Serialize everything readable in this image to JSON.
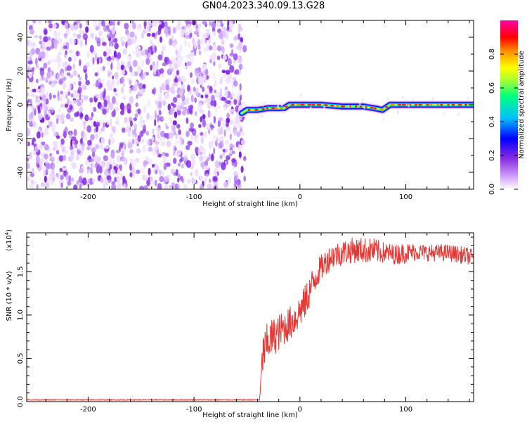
{
  "title": "GN04.2023.340.09.13.G28",
  "colors": {
    "snr_line": "#e53935",
    "noise": "#8a2be2",
    "colormap": [
      "#ffffff",
      "#d9b3ff",
      "#8a2be2",
      "#0000ff",
      "#00bfff",
      "#00ff7f",
      "#adff2f",
      "#ffff00",
      "#ff8c00",
      "#ff0000",
      "#ff00ff"
    ]
  },
  "chart_data": [
    {
      "type": "heatmap",
      "xlabel": "Height of straight line (km)",
      "ylabel": "Frequency (Hz)",
      "xlim": [
        -258,
        164
      ],
      "ylim": [
        -50,
        50
      ],
      "xticks": [
        "-200",
        "-100",
        "0",
        "100"
      ],
      "xtick_values": [
        -200,
        -100,
        0,
        100
      ],
      "yticks": [
        "40",
        "20",
        "0",
        "-20",
        "-40"
      ],
      "ytick_values": [
        40,
        20,
        0,
        -20,
        -40
      ],
      "noise_region": {
        "x_from": -258,
        "x_to": -52,
        "description_level": "low-amplitude speckle"
      },
      "ridge": [
        {
          "x": -55,
          "f": -5
        },
        {
          "x": -50,
          "f": -3
        },
        {
          "x": -40,
          "f": -3
        },
        {
          "x": -30,
          "f": -2
        },
        {
          "x": -20,
          "f": -2
        },
        {
          "x": -15,
          "f": -2
        },
        {
          "x": -10,
          "f": 0
        },
        {
          "x": -5,
          "f": 0
        },
        {
          "x": 0,
          "f": 0
        },
        {
          "x": 20,
          "f": 0
        },
        {
          "x": 40,
          "f": -1
        },
        {
          "x": 60,
          "f": -1
        },
        {
          "x": 70,
          "f": -2
        },
        {
          "x": 78,
          "f": -3
        },
        {
          "x": 85,
          "f": 0
        },
        {
          "x": 100,
          "f": 0
        },
        {
          "x": 130,
          "f": 0
        },
        {
          "x": 164,
          "f": 0
        }
      ],
      "colorbar": {
        "label": "Normalized spectral amplitude",
        "ticks": [
          "0.0",
          "0.2",
          "0.4",
          "0.6",
          "0.8"
        ],
        "tick_values": [
          0.0,
          0.2,
          0.4,
          0.6,
          0.8
        ],
        "range": [
          0,
          1
        ]
      }
    },
    {
      "type": "line",
      "xlabel": "Height of straight line (km)",
      "ylabel": "SNR (10 * v/v)",
      "scale_note": "(x10",
      "scale_exp": "4",
      "xlim": [
        -258,
        164
      ],
      "ylim": [
        0,
        1.95
      ],
      "xticks": [
        "-200",
        "-100",
        "0",
        "100"
      ],
      "xtick_values": [
        -200,
        -100,
        0,
        100
      ],
      "yticks": [
        "0.0",
        "0.5",
        "1.0",
        "1.5"
      ],
      "ytick_values": [
        0.0,
        0.5,
        1.0,
        1.5
      ],
      "series": [
        {
          "x": [
            -258,
            -240,
            -200,
            -150,
            -100,
            -60,
            -38,
            -37,
            -35,
            -32,
            -30,
            -25,
            -20,
            -15,
            -10,
            -5,
            0,
            5,
            10,
            15,
            20,
            25,
            30,
            40,
            50,
            60,
            70,
            80,
            90,
            100,
            110,
            120,
            130,
            140,
            150,
            160,
            164
          ],
          "y": [
            0.02,
            0.02,
            0.02,
            0.02,
            0.02,
            0.02,
            0.02,
            0.2,
            0.55,
            0.62,
            0.7,
            0.75,
            0.8,
            0.85,
            0.9,
            0.95,
            1.05,
            1.15,
            1.3,
            1.45,
            1.55,
            1.62,
            1.68,
            1.72,
            1.75,
            1.75,
            1.74,
            1.72,
            1.7,
            1.72,
            1.73,
            1.72,
            1.72,
            1.72,
            1.7,
            1.68,
            1.65
          ],
          "noise_amplitude": [
            0.005,
            0.005,
            0.005,
            0.005,
            0.005,
            0.005,
            0.005,
            0.1,
            0.25,
            0.25,
            0.25,
            0.22,
            0.22,
            0.2,
            0.2,
            0.2,
            0.2,
            0.2,
            0.2,
            0.18,
            0.15,
            0.15,
            0.15,
            0.15,
            0.15,
            0.15,
            0.15,
            0.12,
            0.12,
            0.12,
            0.1,
            0.1,
            0.1,
            0.1,
            0.1,
            0.1,
            0.1
          ]
        }
      ]
    }
  ]
}
